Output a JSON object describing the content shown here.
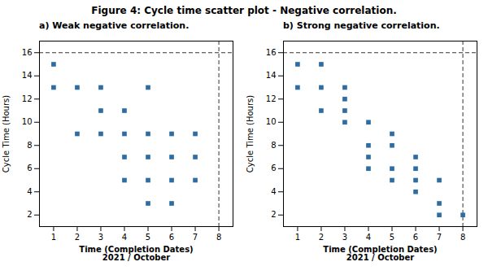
{
  "title": "Figure 4: Cycle time scatter plot - Negative correlation.",
  "chart_data": [
    {
      "type": "scatter",
      "title": "a) Weak negative correlation.",
      "xlabel": "Time (Completion Dates)\n2021 / October",
      "ylabel": "Cycle Time (Hours)",
      "x": [
        1,
        1,
        2,
        2,
        3,
        3,
        3,
        4,
        4,
        4,
        4,
        5,
        5,
        5,
        5,
        5,
        6,
        6,
        6,
        6,
        7,
        7,
        7
      ],
      "values": [
        15,
        13,
        13,
        9,
        13,
        11,
        9,
        11,
        9,
        7,
        5,
        9,
        7,
        5,
        3,
        13,
        9,
        7,
        5,
        3,
        9,
        7,
        5
      ],
      "color": "#2e6da4",
      "marker": "square",
      "xlim": [
        0.4,
        8.6
      ],
      "ylim": [
        1.0,
        17.0
      ],
      "xticks": [
        1,
        2,
        3,
        4,
        5,
        6,
        7,
        8
      ],
      "yticks": [
        2,
        4,
        6,
        8,
        10,
        12,
        14,
        16
      ],
      "hline": 16,
      "vline": 8,
      "grid": false
    },
    {
      "type": "scatter",
      "title": "b) Strong negative correlation.",
      "xlabel": "Time (Completion Dates)\n2021 / October",
      "ylabel": "Cycle Time (Hours)",
      "x": [
        1,
        1,
        2,
        2,
        2,
        3,
        3,
        3,
        3,
        4,
        4,
        4,
        4,
        5,
        5,
        5,
        5,
        6,
        6,
        6,
        6,
        7,
        7,
        7,
        8
      ],
      "values": [
        15,
        13,
        15,
        13,
        11,
        13,
        12,
        11,
        10,
        10,
        8,
        7,
        6,
        9,
        8,
        6,
        5,
        7,
        6,
        5,
        4,
        5,
        3,
        2,
        2
      ],
      "color": "#2e6da4",
      "marker": "square",
      "xlim": [
        0.4,
        8.6
      ],
      "ylim": [
        1.0,
        17.0
      ],
      "xticks": [
        1,
        2,
        3,
        4,
        5,
        6,
        7,
        8
      ],
      "yticks": [
        2,
        4,
        6,
        8,
        10,
        12,
        14,
        16
      ],
      "hline": 16,
      "vline": 8,
      "grid": false
    }
  ]
}
